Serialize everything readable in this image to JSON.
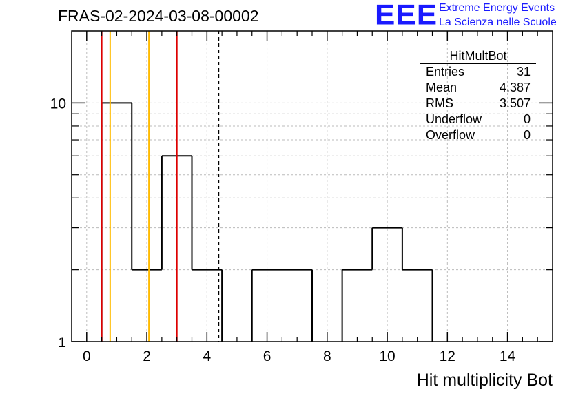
{
  "header": {
    "run_title": "FRAS-02-2024-03-08-00002",
    "logo_text": "EEE",
    "logo_line1": "Extreme Energy Events",
    "logo_line2": "La Scienza nelle Scuole"
  },
  "stats": {
    "title": "HitMultBot",
    "rows": [
      {
        "label": "Entries",
        "value": "31"
      },
      {
        "label": "Mean",
        "value": "4.387"
      },
      {
        "label": "RMS",
        "value": "3.507"
      },
      {
        "label": "Underflow",
        "value": "0"
      },
      {
        "label": "Overflow",
        "value": "0"
      }
    ]
  },
  "chart_data": {
    "type": "bar",
    "style": "step histogram",
    "xlabel": "Hit multiplicity Bot",
    "ylabel": "",
    "xlim": [
      -0.5,
      15.5
    ],
    "ylim": [
      1,
      20
    ],
    "log_y": true,
    "grid": true,
    "x_ticks": [
      0,
      2,
      4,
      6,
      8,
      10,
      12,
      14
    ],
    "y_ticks": [
      1,
      10
    ],
    "bins": [
      {
        "x": 0,
        "value": 0
      },
      {
        "x": 1,
        "value": 10
      },
      {
        "x": 2,
        "value": 2
      },
      {
        "x": 3,
        "value": 6
      },
      {
        "x": 4,
        "value": 2
      },
      {
        "x": 5,
        "value": 0
      },
      {
        "x": 6,
        "value": 2
      },
      {
        "x": 7,
        "value": 2
      },
      {
        "x": 8,
        "value": 0
      },
      {
        "x": 9,
        "value": 2
      },
      {
        "x": 10,
        "value": 3
      },
      {
        "x": 11,
        "value": 2
      },
      {
        "x": 12,
        "value": 0
      },
      {
        "x": 13,
        "value": 0
      },
      {
        "x": 14,
        "value": 0
      },
      {
        "x": 15,
        "value": 0
      }
    ],
    "vertical_lines": [
      {
        "x": 0.5,
        "color": "#dd0000",
        "style": "solid"
      },
      {
        "x": 0.78,
        "color": "#ffbb00",
        "style": "solid"
      },
      {
        "x": 2.07,
        "color": "#ffbb00",
        "style": "solid"
      },
      {
        "x": 3.0,
        "color": "#dd0000",
        "style": "solid"
      },
      {
        "x": 4.387,
        "color": "#000000",
        "style": "dashed"
      }
    ],
    "colors": {
      "histogram": "#000000",
      "grid": "#bbbbbb"
    }
  }
}
